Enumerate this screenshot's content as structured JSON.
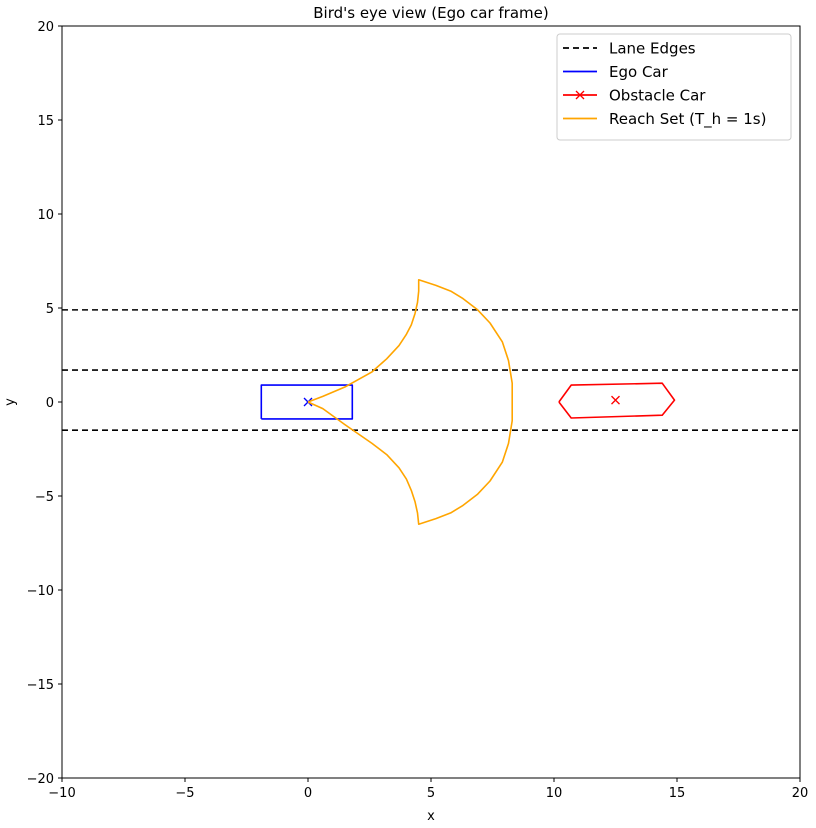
{
  "chart_data": {
    "type": "line",
    "title": "Bird's eye view (Ego car frame)",
    "xlabel": "x",
    "ylabel": "y",
    "xlim": [
      -10,
      20
    ],
    "ylim": [
      -20,
      20
    ],
    "xticks": [
      -10,
      -5,
      0,
      5,
      10,
      15,
      20
    ],
    "yticks": [
      -20,
      -15,
      -10,
      -5,
      0,
      5,
      10,
      15,
      20
    ],
    "xtick_labels": [
      "−10",
      "−5",
      "0",
      "5",
      "10",
      "15",
      "20"
    ],
    "ytick_labels": [
      "−20",
      "−15",
      "−10",
      "−5",
      "0",
      "5",
      "10",
      "15",
      "20"
    ],
    "grid": false,
    "legend_position": "top-right",
    "series": [
      {
        "name": "Lane Edges",
        "kind": "hlines",
        "color": "#000000",
        "style": "dashed",
        "y": [
          4.9,
          1.7,
          -1.5
        ]
      },
      {
        "name": "Ego Car",
        "kind": "polygon",
        "color": "#0000ff",
        "style": "solid",
        "marker": "x",
        "marker_point": [
          0,
          0
        ],
        "points": [
          [
            -1.9,
            -0.9
          ],
          [
            1.8,
            -0.9
          ],
          [
            1.8,
            0.9
          ],
          [
            -1.9,
            0.9
          ],
          [
            -1.9,
            -0.9
          ]
        ]
      },
      {
        "name": "Obstacle Car",
        "kind": "polygon",
        "color": "#ff0000",
        "style": "solid",
        "marker": "x",
        "marker_point": [
          12.5,
          0.1
        ],
        "points": [
          [
            10.2,
            0.0
          ],
          [
            10.7,
            0.9
          ],
          [
            14.4,
            1.0
          ],
          [
            14.9,
            0.1
          ],
          [
            14.4,
            -0.7
          ],
          [
            10.7,
            -0.85
          ],
          [
            10.2,
            0.0
          ]
        ]
      },
      {
        "name": "Reach Set (T_h = 1s)",
        "kind": "polyline",
        "color": "#ffa500",
        "style": "solid",
        "points": [
          [
            0.0,
            0.0
          ],
          [
            0.6,
            0.3
          ],
          [
            1.5,
            0.8
          ],
          [
            2.6,
            1.6
          ],
          [
            3.2,
            2.3
          ],
          [
            3.7,
            3.0
          ],
          [
            4.0,
            3.6
          ],
          [
            4.2,
            4.1
          ],
          [
            4.35,
            4.7
          ],
          [
            4.45,
            5.3
          ],
          [
            4.5,
            5.9
          ],
          [
            4.5,
            6.5
          ],
          [
            5.2,
            6.2
          ],
          [
            5.8,
            5.9
          ],
          [
            6.3,
            5.5
          ],
          [
            6.9,
            4.9
          ],
          [
            7.4,
            4.2
          ],
          [
            7.9,
            3.2
          ],
          [
            8.15,
            2.2
          ],
          [
            8.3,
            1.0
          ],
          [
            8.3,
            0.0
          ],
          [
            8.3,
            -1.0
          ],
          [
            8.15,
            -2.2
          ],
          [
            7.9,
            -3.2
          ],
          [
            7.4,
            -4.2
          ],
          [
            6.9,
            -4.9
          ],
          [
            6.3,
            -5.5
          ],
          [
            5.8,
            -5.9
          ],
          [
            5.2,
            -6.2
          ],
          [
            4.5,
            -6.5
          ],
          [
            4.45,
            -5.9
          ],
          [
            4.35,
            -5.3
          ],
          [
            4.2,
            -4.7
          ],
          [
            4.0,
            -4.1
          ],
          [
            3.7,
            -3.5
          ],
          [
            3.2,
            -2.8
          ],
          [
            2.6,
            -2.2
          ],
          [
            1.5,
            -1.2
          ],
          [
            0.6,
            -0.35
          ],
          [
            0.0,
            0.0
          ]
        ]
      }
    ]
  }
}
